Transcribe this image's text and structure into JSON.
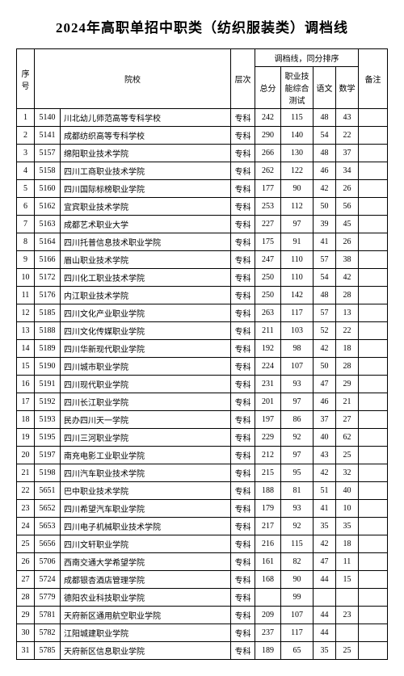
{
  "title": "2024年高职单招中职类（纺织服装类）调档线",
  "columns": {
    "seq": "序号",
    "school": "院校",
    "level": "层次",
    "group_header": "调档线，同分排序",
    "total": "总分",
    "skill": "职业技能综合测试",
    "lang": "语文",
    "math": "数学",
    "note": "备注"
  },
  "rows": [
    {
      "seq": "1",
      "code": "5140",
      "school": "川北幼儿师范高等专科学校",
      "level": "专科",
      "total": "242",
      "skill": "115",
      "lang": "48",
      "math": "43",
      "note": ""
    },
    {
      "seq": "2",
      "code": "5141",
      "school": "成都纺织高等专科学校",
      "level": "专科",
      "total": "290",
      "skill": "140",
      "lang": "54",
      "math": "22",
      "note": ""
    },
    {
      "seq": "3",
      "code": "5157",
      "school": "绵阳职业技术学院",
      "level": "专科",
      "total": "266",
      "skill": "130",
      "lang": "48",
      "math": "37",
      "note": ""
    },
    {
      "seq": "4",
      "code": "5158",
      "school": "四川工商职业技术学院",
      "level": "专科",
      "total": "262",
      "skill": "122",
      "lang": "46",
      "math": "34",
      "note": ""
    },
    {
      "seq": "5",
      "code": "5160",
      "school": "四川国际标榜职业学院",
      "level": "专科",
      "total": "177",
      "skill": "90",
      "lang": "42",
      "math": "26",
      "note": ""
    },
    {
      "seq": "6",
      "code": "5162",
      "school": "宜宾职业技术学院",
      "level": "专科",
      "total": "253",
      "skill": "112",
      "lang": "50",
      "math": "56",
      "note": ""
    },
    {
      "seq": "7",
      "code": "5163",
      "school": "成都艺术职业大学",
      "level": "专科",
      "total": "227",
      "skill": "97",
      "lang": "39",
      "math": "45",
      "note": ""
    },
    {
      "seq": "8",
      "code": "5164",
      "school": "四川托普信息技术职业学院",
      "level": "专科",
      "total": "175",
      "skill": "91",
      "lang": "41",
      "math": "26",
      "note": ""
    },
    {
      "seq": "9",
      "code": "5166",
      "school": "眉山职业技术学院",
      "level": "专科",
      "total": "247",
      "skill": "110",
      "lang": "57",
      "math": "38",
      "note": ""
    },
    {
      "seq": "10",
      "code": "5172",
      "school": "四川化工职业技术学院",
      "level": "专科",
      "total": "250",
      "skill": "110",
      "lang": "54",
      "math": "42",
      "note": ""
    },
    {
      "seq": "11",
      "code": "5176",
      "school": "内江职业技术学院",
      "level": "专科",
      "total": "250",
      "skill": "142",
      "lang": "48",
      "math": "28",
      "note": ""
    },
    {
      "seq": "12",
      "code": "5185",
      "school": "四川文化产业职业学院",
      "level": "专科",
      "total": "263",
      "skill": "117",
      "lang": "57",
      "math": "13",
      "note": ""
    },
    {
      "seq": "13",
      "code": "5188",
      "school": "四川文化传媒职业学院",
      "level": "专科",
      "total": "211",
      "skill": "103",
      "lang": "52",
      "math": "22",
      "note": ""
    },
    {
      "seq": "14",
      "code": "5189",
      "school": "四川华新现代职业学院",
      "level": "专科",
      "total": "192",
      "skill": "98",
      "lang": "42",
      "math": "18",
      "note": ""
    },
    {
      "seq": "15",
      "code": "5190",
      "school": "四川城市职业学院",
      "level": "专科",
      "total": "224",
      "skill": "107",
      "lang": "50",
      "math": "28",
      "note": ""
    },
    {
      "seq": "16",
      "code": "5191",
      "school": "四川现代职业学院",
      "level": "专科",
      "total": "231",
      "skill": "93",
      "lang": "47",
      "math": "29",
      "note": ""
    },
    {
      "seq": "17",
      "code": "5192",
      "school": "四川长江职业学院",
      "level": "专科",
      "total": "201",
      "skill": "97",
      "lang": "46",
      "math": "21",
      "note": ""
    },
    {
      "seq": "18",
      "code": "5193",
      "school": "民办四川天一学院",
      "level": "专科",
      "total": "197",
      "skill": "86",
      "lang": "37",
      "math": "27",
      "note": ""
    },
    {
      "seq": "19",
      "code": "5195",
      "school": "四川三河职业学院",
      "level": "专科",
      "total": "229",
      "skill": "92",
      "lang": "40",
      "math": "62",
      "note": ""
    },
    {
      "seq": "20",
      "code": "5197",
      "school": "南充电影工业职业学院",
      "level": "专科",
      "total": "212",
      "skill": "97",
      "lang": "43",
      "math": "25",
      "note": ""
    },
    {
      "seq": "21",
      "code": "5198",
      "school": "四川汽车职业技术学院",
      "level": "专科",
      "total": "215",
      "skill": "95",
      "lang": "42",
      "math": "32",
      "note": ""
    },
    {
      "seq": "22",
      "code": "5651",
      "school": "巴中职业技术学院",
      "level": "专科",
      "total": "188",
      "skill": "81",
      "lang": "51",
      "math": "40",
      "note": ""
    },
    {
      "seq": "23",
      "code": "5652",
      "school": "四川希望汽车职业学院",
      "level": "专科",
      "total": "179",
      "skill": "93",
      "lang": "41",
      "math": "10",
      "note": ""
    },
    {
      "seq": "24",
      "code": "5653",
      "school": "四川电子机械职业技术学院",
      "level": "专科",
      "total": "217",
      "skill": "92",
      "lang": "35",
      "math": "35",
      "note": ""
    },
    {
      "seq": "25",
      "code": "5656",
      "school": "四川文轩职业学院",
      "level": "专科",
      "total": "216",
      "skill": "115",
      "lang": "42",
      "math": "18",
      "note": ""
    },
    {
      "seq": "26",
      "code": "5706",
      "school": "西南交通大学希望学院",
      "level": "专科",
      "total": "161",
      "skill": "82",
      "lang": "47",
      "math": "11",
      "note": ""
    },
    {
      "seq": "27",
      "code": "5724",
      "school": "成都银杏酒店管理学院",
      "level": "专科",
      "total": "168",
      "skill": "90",
      "lang": "44",
      "math": "15",
      "note": ""
    },
    {
      "seq": "28",
      "code": "5779",
      "school": "德阳农业科技职业学院",
      "level": "专科",
      "total": "",
      "skill": "99",
      "lang": "",
      "math": "",
      "note": ""
    },
    {
      "seq": "29",
      "code": "5781",
      "school": "天府新区通用航空职业学院",
      "level": "专科",
      "total": "209",
      "skill": "107",
      "lang": "44",
      "math": "23",
      "note": ""
    },
    {
      "seq": "30",
      "code": "5782",
      "school": "江阳城建职业学院",
      "level": "专科",
      "total": "237",
      "skill": "117",
      "lang": "44",
      "math": "",
      "note": ""
    },
    {
      "seq": "31",
      "code": "5785",
      "school": "天府新区信息职业学院",
      "level": "专科",
      "total": "189",
      "skill": "65",
      "lang": "35",
      "math": "25",
      "note": ""
    }
  ]
}
